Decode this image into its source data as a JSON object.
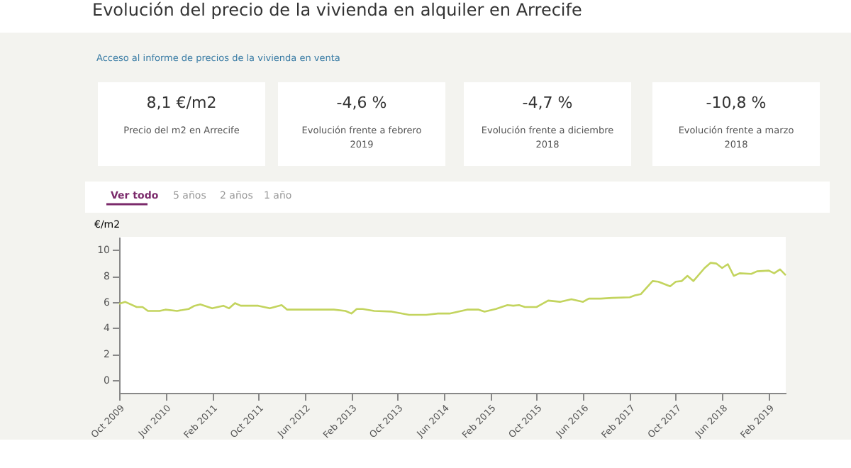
{
  "chart_data": {
    "type": "line",
    "title": "Evolución del precio de la vivienda en alquiler en Arrecife",
    "ylabel": "€/m2",
    "annotations": [
      "Acceso al informe de precios de la vivienda en venta",
      "8,1 €/m2",
      "Precio del m2 en Arrecife",
      "-4,6 %",
      "Evolución frente a febrero 2019",
      "-4,7 %",
      "Evolución frente a diciembre 2018",
      "-10,8 %",
      "Evolución frente a marzo 2018",
      "Ver todo",
      "5 años",
      "2 años",
      "1 año"
    ],
    "x": [
      "2009-10",
      "2009-11",
      "2010-01",
      "2010-02",
      "2010-03",
      "2010-05",
      "2010-06",
      "2010-08",
      "2010-10",
      "2010-11",
      "2010-12",
      "2011-02",
      "2011-04",
      "2011-05",
      "2011-06",
      "2011-07",
      "2011-10",
      "2011-12",
      "2012-02",
      "2012-03",
      "2012-11",
      "2013-01",
      "2013-02",
      "2013-03",
      "2013-04",
      "2013-06",
      "2013-09",
      "2013-12",
      "2014-03",
      "2014-05",
      "2014-07",
      "2014-10",
      "2014-12",
      "2015-01",
      "2015-03",
      "2015-05",
      "2015-06",
      "2015-07",
      "2015-08",
      "2015-10",
      "2015-12",
      "2016-02",
      "2016-04",
      "2016-06",
      "2016-07",
      "2016-09",
      "2016-11",
      "2017-02",
      "2017-03",
      "2017-04",
      "2017-06",
      "2017-07",
      "2017-09",
      "2017-10",
      "2017-11",
      "2017-12",
      "2018-01",
      "2018-03",
      "2018-04",
      "2018-05",
      "2018-06",
      "2018-07",
      "2018-08",
      "2018-09",
      "2018-11",
      "2018-12",
      "2019-02",
      "2019-03",
      "2019-04",
      "2019-05"
    ],
    "series": [
      {
        "color": "#c3d45e",
        "values": [
          5.85,
          6.0,
          5.6,
          5.6,
          5.3,
          5.3,
          5.4,
          5.3,
          5.45,
          5.7,
          5.8,
          5.5,
          5.7,
          5.5,
          5.9,
          5.7,
          5.7,
          5.5,
          5.75,
          5.4,
          5.4,
          5.3,
          5.1,
          5.45,
          5.45,
          5.3,
          5.25,
          5.0,
          5.0,
          5.1,
          5.1,
          5.4,
          5.4,
          5.25,
          5.45,
          5.75,
          5.7,
          5.75,
          5.6,
          5.6,
          6.1,
          6.0,
          6.2,
          6.0,
          6.25,
          6.25,
          6.3,
          6.35,
          6.5,
          6.6,
          7.6,
          7.55,
          7.2,
          7.55,
          7.6,
          8.0,
          7.6,
          8.6,
          9.0,
          8.95,
          8.6,
          8.9,
          8.0,
          8.2,
          8.15,
          8.35,
          8.4,
          8.2,
          8.5,
          8.05
        ]
      }
    ],
    "xlim": [
      "2009-10",
      "2019-05"
    ],
    "xticks": [
      {
        "value": "2009-10",
        "label": "Oct 2009"
      },
      {
        "value": "2010-06",
        "label": "Jun 2010"
      },
      {
        "value": "2011-02",
        "label": "Feb 2011"
      },
      {
        "value": "2011-10",
        "label": "Oct 2011"
      },
      {
        "value": "2012-06",
        "label": "Jun 2012"
      },
      {
        "value": "2013-02",
        "label": "Feb 2013"
      },
      {
        "value": "2013-10",
        "label": "Oct 2013"
      },
      {
        "value": "2014-06",
        "label": "Jun 2014"
      },
      {
        "value": "2015-02",
        "label": "Feb 2015"
      },
      {
        "value": "2015-10",
        "label": "Oct 2015"
      },
      {
        "value": "2016-06",
        "label": "Jun 2016"
      },
      {
        "value": "2017-02",
        "label": "Feb 2017"
      },
      {
        "value": "2017-10",
        "label": "Oct 2017"
      },
      {
        "value": "2018-06",
        "label": "Jun 2018"
      },
      {
        "value": "2019-02",
        "label": "Feb 2019"
      }
    ],
    "ylim": [
      -1,
      11
    ],
    "yticks": [
      0,
      2,
      4,
      6,
      8,
      10
    ],
    "grid": false,
    "marker": "none",
    "line_style": "solid"
  }
}
